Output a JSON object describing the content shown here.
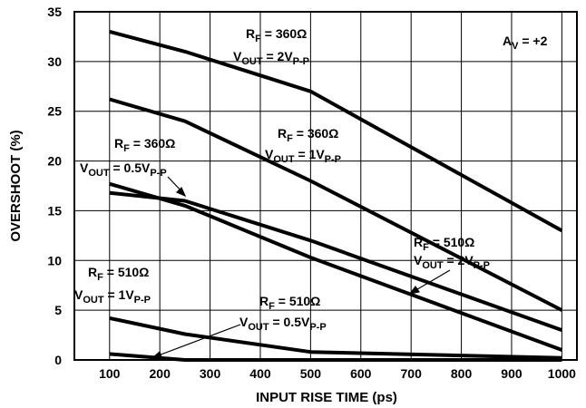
{
  "chart_data": {
    "type": "line",
    "xlabel": "INPUT RISE TIME (ps)",
    "ylabel": "OVERSHOOT (%)",
    "xlim": [
      30,
      1030
    ],
    "ylim": [
      0,
      35
    ],
    "x_ticks": [
      100,
      200,
      300,
      400,
      500,
      600,
      700,
      800,
      900,
      1000
    ],
    "y_ticks": [
      0,
      5,
      10,
      15,
      20,
      25,
      30,
      35
    ],
    "grid": true,
    "series": [
      {
        "x": [
          100,
          250,
          500,
          1000
        ],
        "y": [
          33,
          31,
          27,
          13
        ]
      },
      {
        "x": [
          100,
          250,
          500,
          1000
        ],
        "y": [
          26.2,
          24,
          18,
          5
        ]
      },
      {
        "x": [
          100,
          250,
          500,
          1000
        ],
        "y": [
          16.8,
          16,
          12,
          3
        ]
      },
      {
        "x": [
          100,
          250,
          500,
          1000
        ],
        "y": [
          17.7,
          15.5,
          10.3,
          1
        ]
      },
      {
        "x": [
          100,
          250,
          500,
          1000
        ],
        "y": [
          4.2,
          2.6,
          0.8,
          0.2
        ]
      },
      {
        "x": [
          100,
          250,
          500,
          1000
        ],
        "y": [
          0.6,
          0,
          0,
          0
        ]
      }
    ],
    "annotations": [
      {
        "id": "a1",
        "rf_prefix": "R",
        "rf_sub": "F",
        "rf_value": " = 360Ω",
        "vout_prefix": "V",
        "vout_sub": "OUT",
        "vout_value": " = 2V",
        "vout_unit": "P-P"
      },
      {
        "id": "a2",
        "rf_prefix": "R",
        "rf_sub": "F",
        "rf_value": " = 360Ω",
        "vout_prefix": "V",
        "vout_sub": "OUT",
        "vout_value": " = 1V",
        "vout_unit": "P-P"
      },
      {
        "id": "a3",
        "rf_prefix": "R",
        "rf_sub": "F",
        "rf_value": " = 360Ω",
        "vout_prefix": "V",
        "vout_sub": "OUT",
        "vout_value": " = 0.5V",
        "vout_unit": "P-P"
      },
      {
        "id": "a4",
        "rf_prefix": "R",
        "rf_sub": "F",
        "rf_value": " = 510Ω",
        "vout_prefix": "V",
        "vout_sub": "OUT",
        "vout_value": " = 2V",
        "vout_unit": "P-P"
      },
      {
        "id": "a5",
        "rf_prefix": "R",
        "rf_sub": "F",
        "rf_value": " = 510Ω",
        "vout_prefix": "V",
        "vout_sub": "OUT",
        "vout_value": " = 1V",
        "vout_unit": "P-P"
      },
      {
        "id": "a6",
        "rf_prefix": "R",
        "rf_sub": "F",
        "rf_value": " = 510Ω",
        "vout_prefix": "V",
        "vout_sub": "OUT",
        "vout_value": " = 0.5V",
        "vout_unit": "P-P"
      }
    ],
    "gain_label": {
      "prefix": "A",
      "sub": "V",
      "value": " = +2"
    }
  }
}
